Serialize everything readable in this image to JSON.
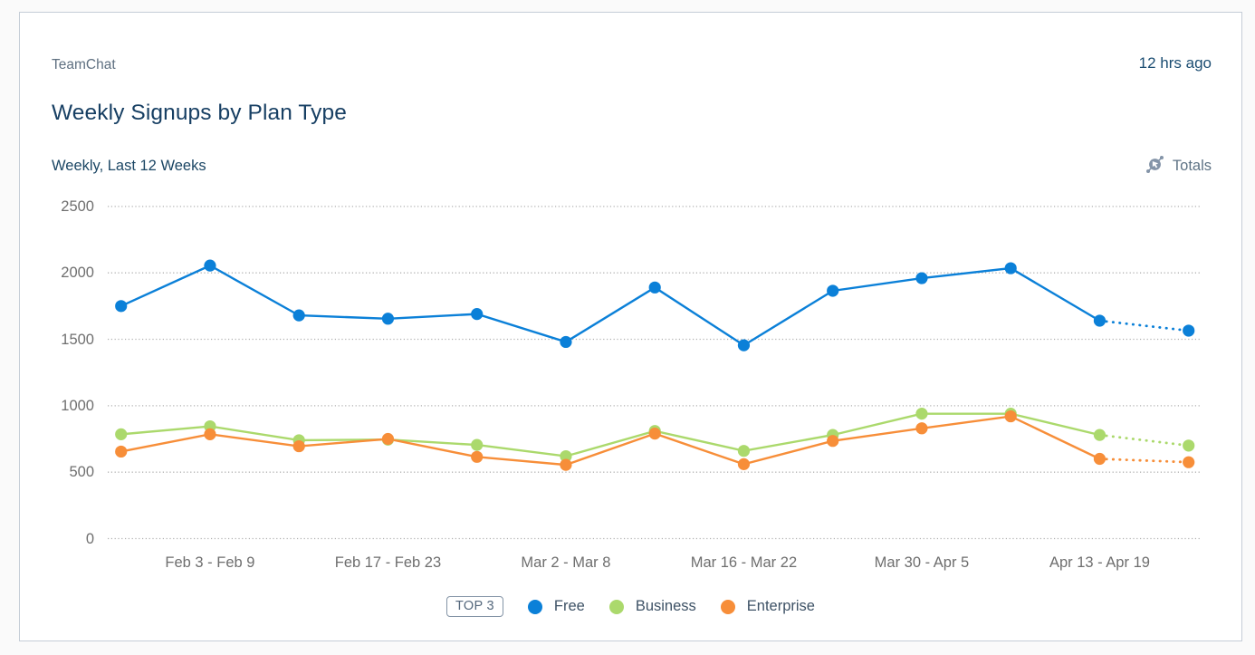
{
  "card": {
    "app_name": "TeamChat",
    "updated": "12 hrs ago",
    "title": "Weekly Signups by Plan Type",
    "subtitle": "Weekly, Last 12 Weeks",
    "totals_label": "Totals",
    "totals_icon": "scatter-pointer-icon"
  },
  "legend": {
    "badge": "TOP 3",
    "items": [
      {
        "label": "Free",
        "color": "#0b80d8"
      },
      {
        "label": "Business",
        "color": "#abd96c"
      },
      {
        "label": "Enterprise",
        "color": "#f78e39"
      }
    ]
  },
  "chart_data": {
    "type": "line",
    "title": "Weekly Signups by Plan Type",
    "subtitle": "Weekly, Last 12 Weeks",
    "ylim": [
      0,
      2500
    ],
    "y_ticks": [
      0,
      500,
      1000,
      1500,
      2000,
      2500
    ],
    "x_tick_labels": [
      "Feb 3 - Feb 9",
      "Feb 17 - Feb 23",
      "Mar 2 - Mar 8",
      "Mar 16 - Mar 22",
      "Mar 30 - Apr 5",
      "Apr 13 - Apr 19"
    ],
    "x_tick_point_indices": [
      1,
      3,
      5,
      7,
      9,
      11
    ],
    "num_points": 13,
    "grid": "horizontal-dotted",
    "legend_position": "bottom",
    "last_segment_style": "dotted-projection",
    "series": [
      {
        "name": "Free",
        "color": "#0b80d8",
        "values": [
          1750,
          2055,
          1680,
          1655,
          1690,
          1480,
          1890,
          1455,
          1865,
          1960,
          2035,
          1640,
          1565
        ]
      },
      {
        "name": "Business",
        "color": "#abd96c",
        "values": [
          785,
          845,
          740,
          745,
          705,
          620,
          810,
          660,
          780,
          940,
          940,
          780,
          700
        ]
      },
      {
        "name": "Enterprise",
        "color": "#f78e39",
        "values": [
          655,
          785,
          695,
          750,
          615,
          555,
          790,
          560,
          735,
          830,
          920,
          600,
          575
        ]
      }
    ]
  },
  "colors": {
    "card_border": "#c5cdd7",
    "page_bg": "#fafafa",
    "gridline": "#b0b0b0",
    "axis_text": "#6f6f6f",
    "title_text": "#173f63",
    "icon_gray": "#8494a8"
  }
}
